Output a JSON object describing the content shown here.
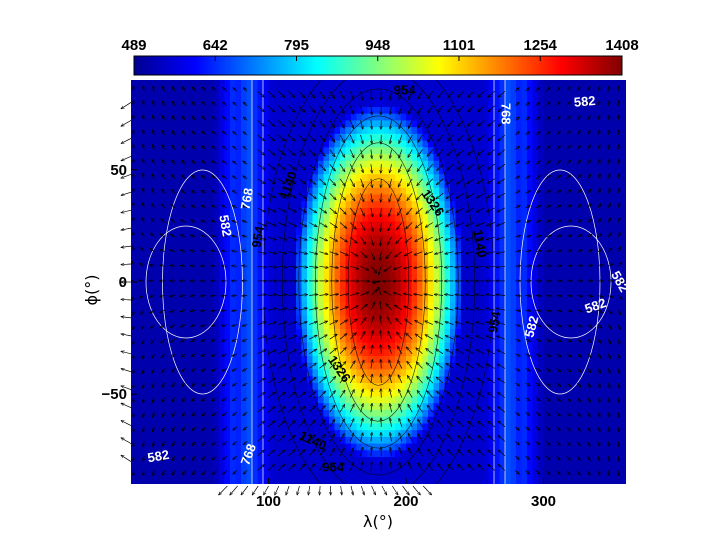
{
  "chart_data": {
    "type": "heatmap",
    "title": "",
    "xlabel": "λ(°)",
    "ylabel": "ϕ(°)",
    "xlim": [
      0,
      360
    ],
    "ylim": [
      -90,
      90
    ],
    "x_ticks": [
      100,
      200,
      300
    ],
    "x_tick_labels": [
      "100",
      "200",
      "300"
    ],
    "y_ticks": [
      50,
      0,
      -50
    ],
    "y_tick_labels": [
      "50",
      "0",
      "−50"
    ],
    "colorbar": {
      "min": 489,
      "max": 1408,
      "ticks": [
        489,
        642,
        795,
        948,
        1101,
        1254,
        1408
      ],
      "tick_labels": [
        "489",
        "642",
        "795",
        "948",
        "1101",
        "1254",
        "1408"
      ],
      "colormap": "jet",
      "placement": "top"
    },
    "field": {
      "description_units": "temperature-like scalar with overlaid wind vectors",
      "hotspot_center": [
        180,
        0
      ],
      "max_value": 1408,
      "min_value": 489
    },
    "contour_levels": [
      582,
      768,
      954,
      1140,
      1326
    ],
    "contour_labels": [
      {
        "text": "954",
        "lon": 199,
        "lat": 85,
        "color": "#000000",
        "rotate": 0
      },
      {
        "text": "768",
        "lon": 272,
        "lat": 75,
        "color": "#ffffff",
        "rotate": 90
      },
      {
        "text": "582",
        "lon": 330,
        "lat": 80,
        "color": "#ffffff",
        "rotate": -5
      },
      {
        "text": "768",
        "lon": 85,
        "lat": 37,
        "color": "#ffffff",
        "rotate": -80
      },
      {
        "text": "1140",
        "lon": 115,
        "lat": 43,
        "color": "#000000",
        "rotate": -70
      },
      {
        "text": "1326",
        "lon": 219,
        "lat": 35,
        "color": "#000000",
        "rotate": 55
      },
      {
        "text": "582",
        "lon": 68,
        "lat": 25,
        "color": "#ffffff",
        "rotate": 80
      },
      {
        "text": "954",
        "lon": 93,
        "lat": 20,
        "color": "#000000",
        "rotate": -80
      },
      {
        "text": "1140",
        "lon": 253,
        "lat": 17,
        "color": "#000000",
        "rotate": 80
      },
      {
        "text": "582",
        "lon": 355,
        "lat": 0,
        "color": "#ffffff",
        "rotate": 60
      },
      {
        "text": "954",
        "lon": 265,
        "lat": -18,
        "color": "#000000",
        "rotate": -80
      },
      {
        "text": "582",
        "lon": 338,
        "lat": -11,
        "color": "#ffffff",
        "rotate": -20
      },
      {
        "text": "582",
        "lon": 292,
        "lat": -20,
        "color": "#ffffff",
        "rotate": -75
      },
      {
        "text": "1326",
        "lon": 151,
        "lat": -39,
        "color": "#000000",
        "rotate": 55
      },
      {
        "text": "1140",
        "lon": 132,
        "lat": -71,
        "color": "#000000",
        "rotate": 25
      },
      {
        "text": "954",
        "lon": 147,
        "lat": -83,
        "color": "#000000",
        "rotate": 0
      },
      {
        "text": "582",
        "lon": 20,
        "lat": -78,
        "color": "#ffffff",
        "rotate": -10
      },
      {
        "text": "768",
        "lon": 86,
        "lat": -77,
        "color": "#ffffff",
        "rotate": -70
      }
    ],
    "grid": false,
    "legend": "none"
  }
}
